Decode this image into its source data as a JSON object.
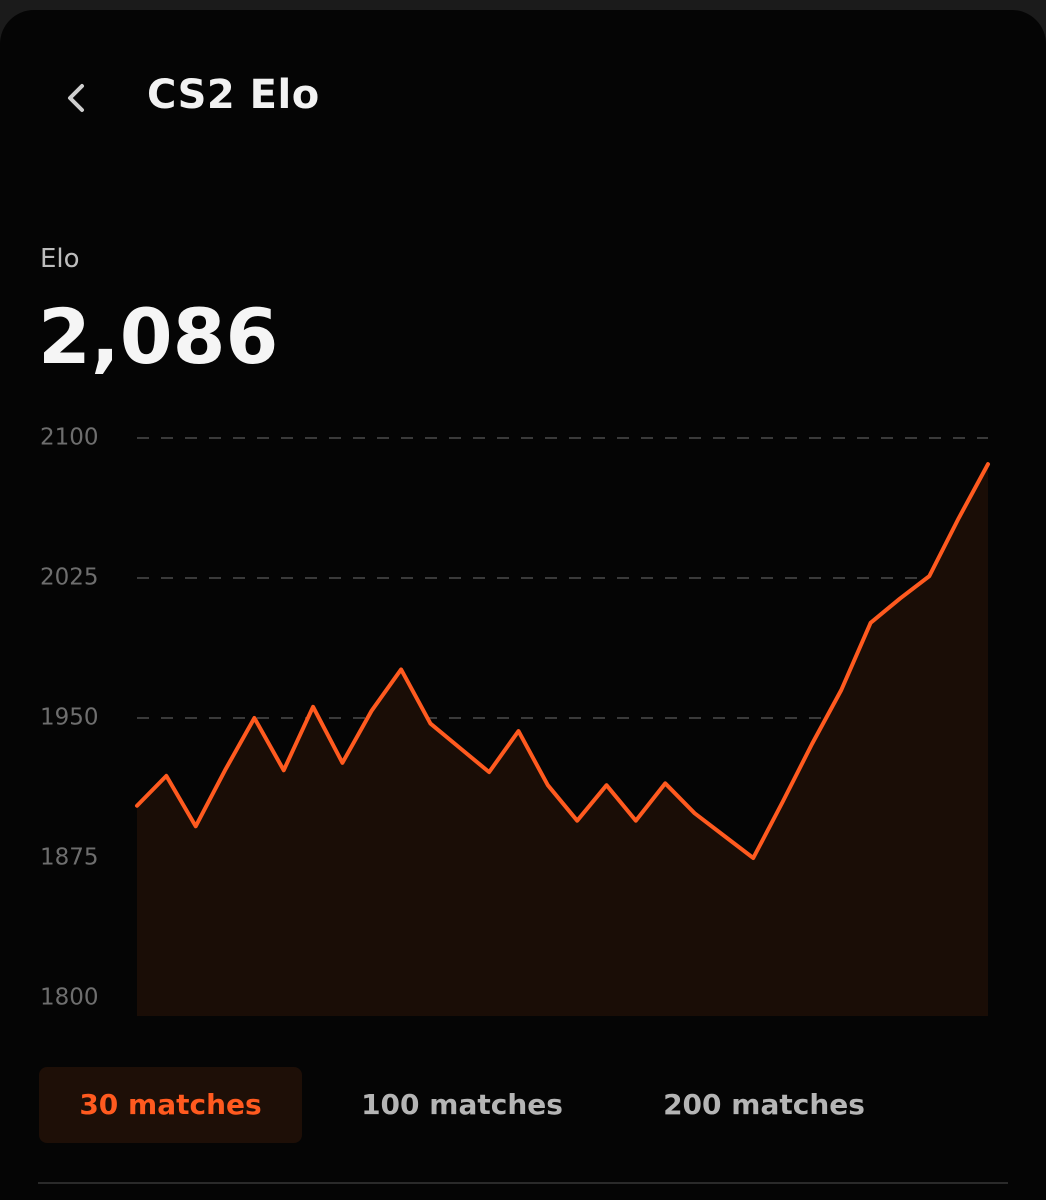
{
  "header": {
    "title": "CS2 Elo"
  },
  "stat": {
    "label": "Elo",
    "value": "2,086"
  },
  "chart_data": {
    "type": "line",
    "color": "#ff5a1f",
    "values": [
      1903,
      1919,
      1892,
      1922,
      1950,
      1922,
      1956,
      1926,
      1954,
      1976,
      1947,
      1934,
      1921,
      1943,
      1914,
      1895,
      1914,
      1895,
      1915,
      1899,
      1887,
      1875,
      1905,
      1936,
      1965,
      2001,
      2014,
      2026,
      2057,
      2086
    ],
    "ylim": [
      1800,
      2100
    ],
    "yticks": [
      1800,
      1875,
      1950,
      2025,
      2100
    ],
    "grid": true
  },
  "tabs": [
    {
      "label": "30 matches",
      "selected": true
    },
    {
      "label": "100 matches",
      "selected": false
    },
    {
      "label": "200 matches",
      "selected": false
    }
  ]
}
